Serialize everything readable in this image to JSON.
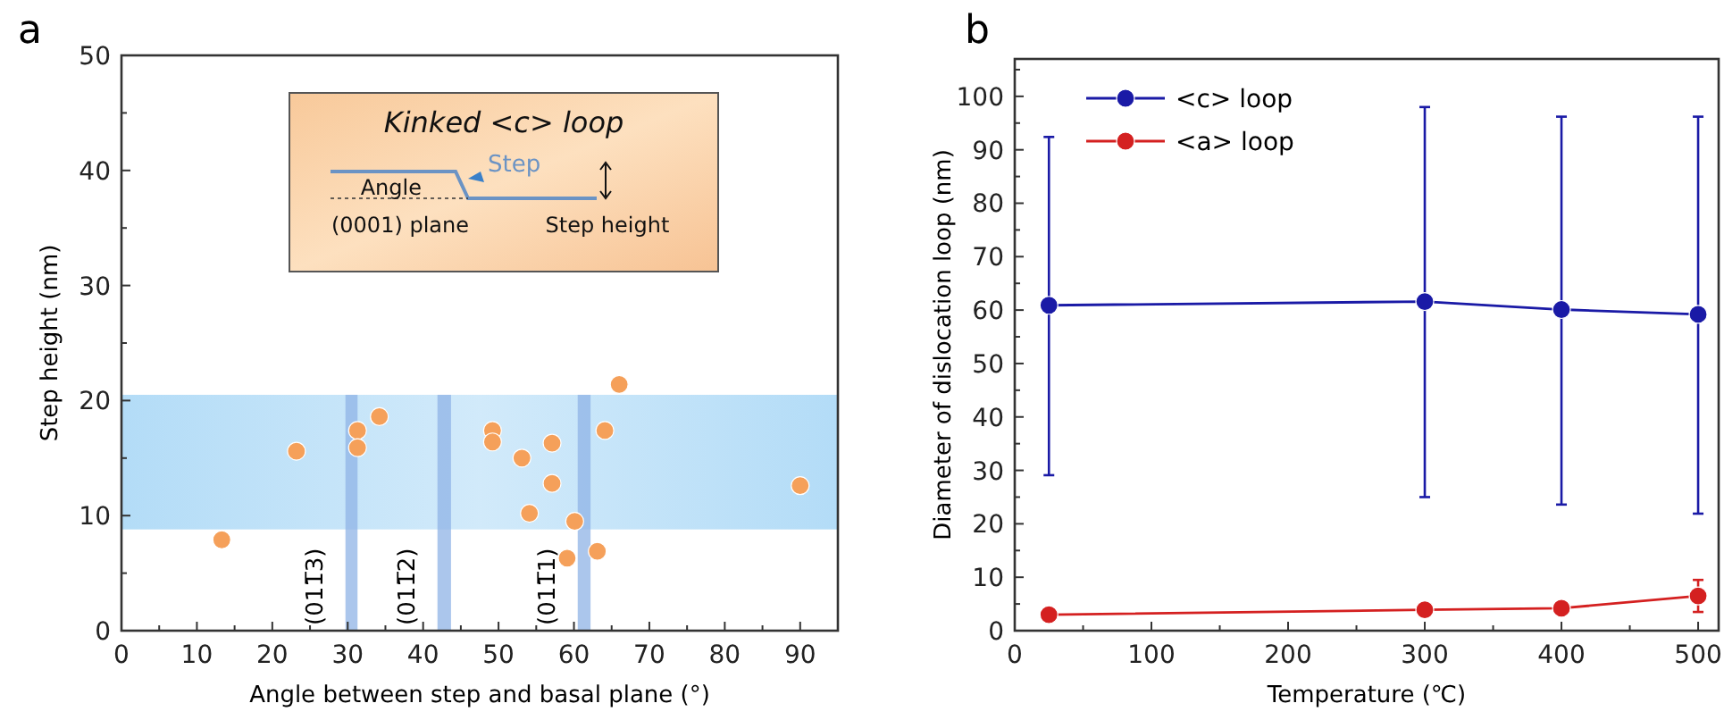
{
  "chart_data": [
    {
      "type": "scatter",
      "title": "a",
      "xlabel": "Angle between step and basal plane (°)",
      "ylabel": "Step height (nm)",
      "color": "#f5a05a",
      "marker": "circle",
      "x": [
        13.3,
        23.2,
        31.3,
        31.3,
        34.2,
        49.2,
        49.2,
        53.1,
        54.1,
        57.1,
        57.1,
        59.1,
        60.1,
        63.1,
        64.1,
        66.0,
        90.0
      ],
      "values": [
        7.9,
        15.6,
        17.4,
        15.9,
        18.6,
        17.4,
        16.4,
        15.0,
        10.2,
        16.3,
        12.8,
        6.3,
        9.5,
        6.9,
        17.4,
        21.4,
        12.6
      ],
      "xlim": [
        0,
        95
      ],
      "xticks": [
        0,
        10,
        20,
        30,
        40,
        50,
        60,
        70,
        80,
        90
      ],
      "ylim": [
        0,
        50
      ],
      "yticks": [
        0,
        10,
        20,
        30,
        40,
        50
      ],
      "bands": [
        {
          "axis": "y",
          "from": 8.8,
          "to": 20.5,
          "color": "#b3dcf7"
        },
        {
          "axis": "x",
          "from": 29.7,
          "to": 31.3,
          "label": "(011̅3)",
          "color": "#8fb3e6"
        },
        {
          "axis": "x",
          "from": 41.9,
          "to": 43.7,
          "label": "(011̅2)",
          "color": "#8fb3e6"
        },
        {
          "axis": "x",
          "from": 60.5,
          "to": 62.2,
          "label": "(011̅1)",
          "color": "#8fb3e6"
        }
      ],
      "annotations": [
        "Kinked <c> loop",
        "Step",
        "Angle",
        "(0001) plane",
        "Step height"
      ]
    },
    {
      "type": "line",
      "title": "b",
      "xlabel": "Temperature (℃)",
      "ylabel": "Diameter of dislocation loop (nm)",
      "marker": "circle",
      "legend": "top left",
      "x": [
        25,
        300,
        400,
        500
      ],
      "xlim": [
        0,
        515
      ],
      "xticks": [
        0,
        100,
        200,
        300,
        400,
        500
      ],
      "ylim": [
        0,
        107
      ],
      "yticks": [
        0,
        10,
        20,
        30,
        40,
        50,
        60,
        70,
        80,
        90,
        100
      ],
      "series": [
        {
          "name": "<c> loop",
          "color": "#1a1aa6",
          "values": [
            60.9,
            61.6,
            60.1,
            59.2
          ],
          "errors": [
            [
              29.1,
              92.4
            ],
            [
              25.0,
              98.0
            ],
            [
              23.6,
              96.2
            ],
            [
              21.9,
              96.2
            ]
          ]
        },
        {
          "name": "<a> loop",
          "color": "#d42020",
          "values": [
            3.0,
            3.9,
            4.2,
            6.5
          ],
          "errors": [
            null,
            null,
            null,
            [
              3.5,
              9.5
            ]
          ]
        }
      ]
    }
  ]
}
